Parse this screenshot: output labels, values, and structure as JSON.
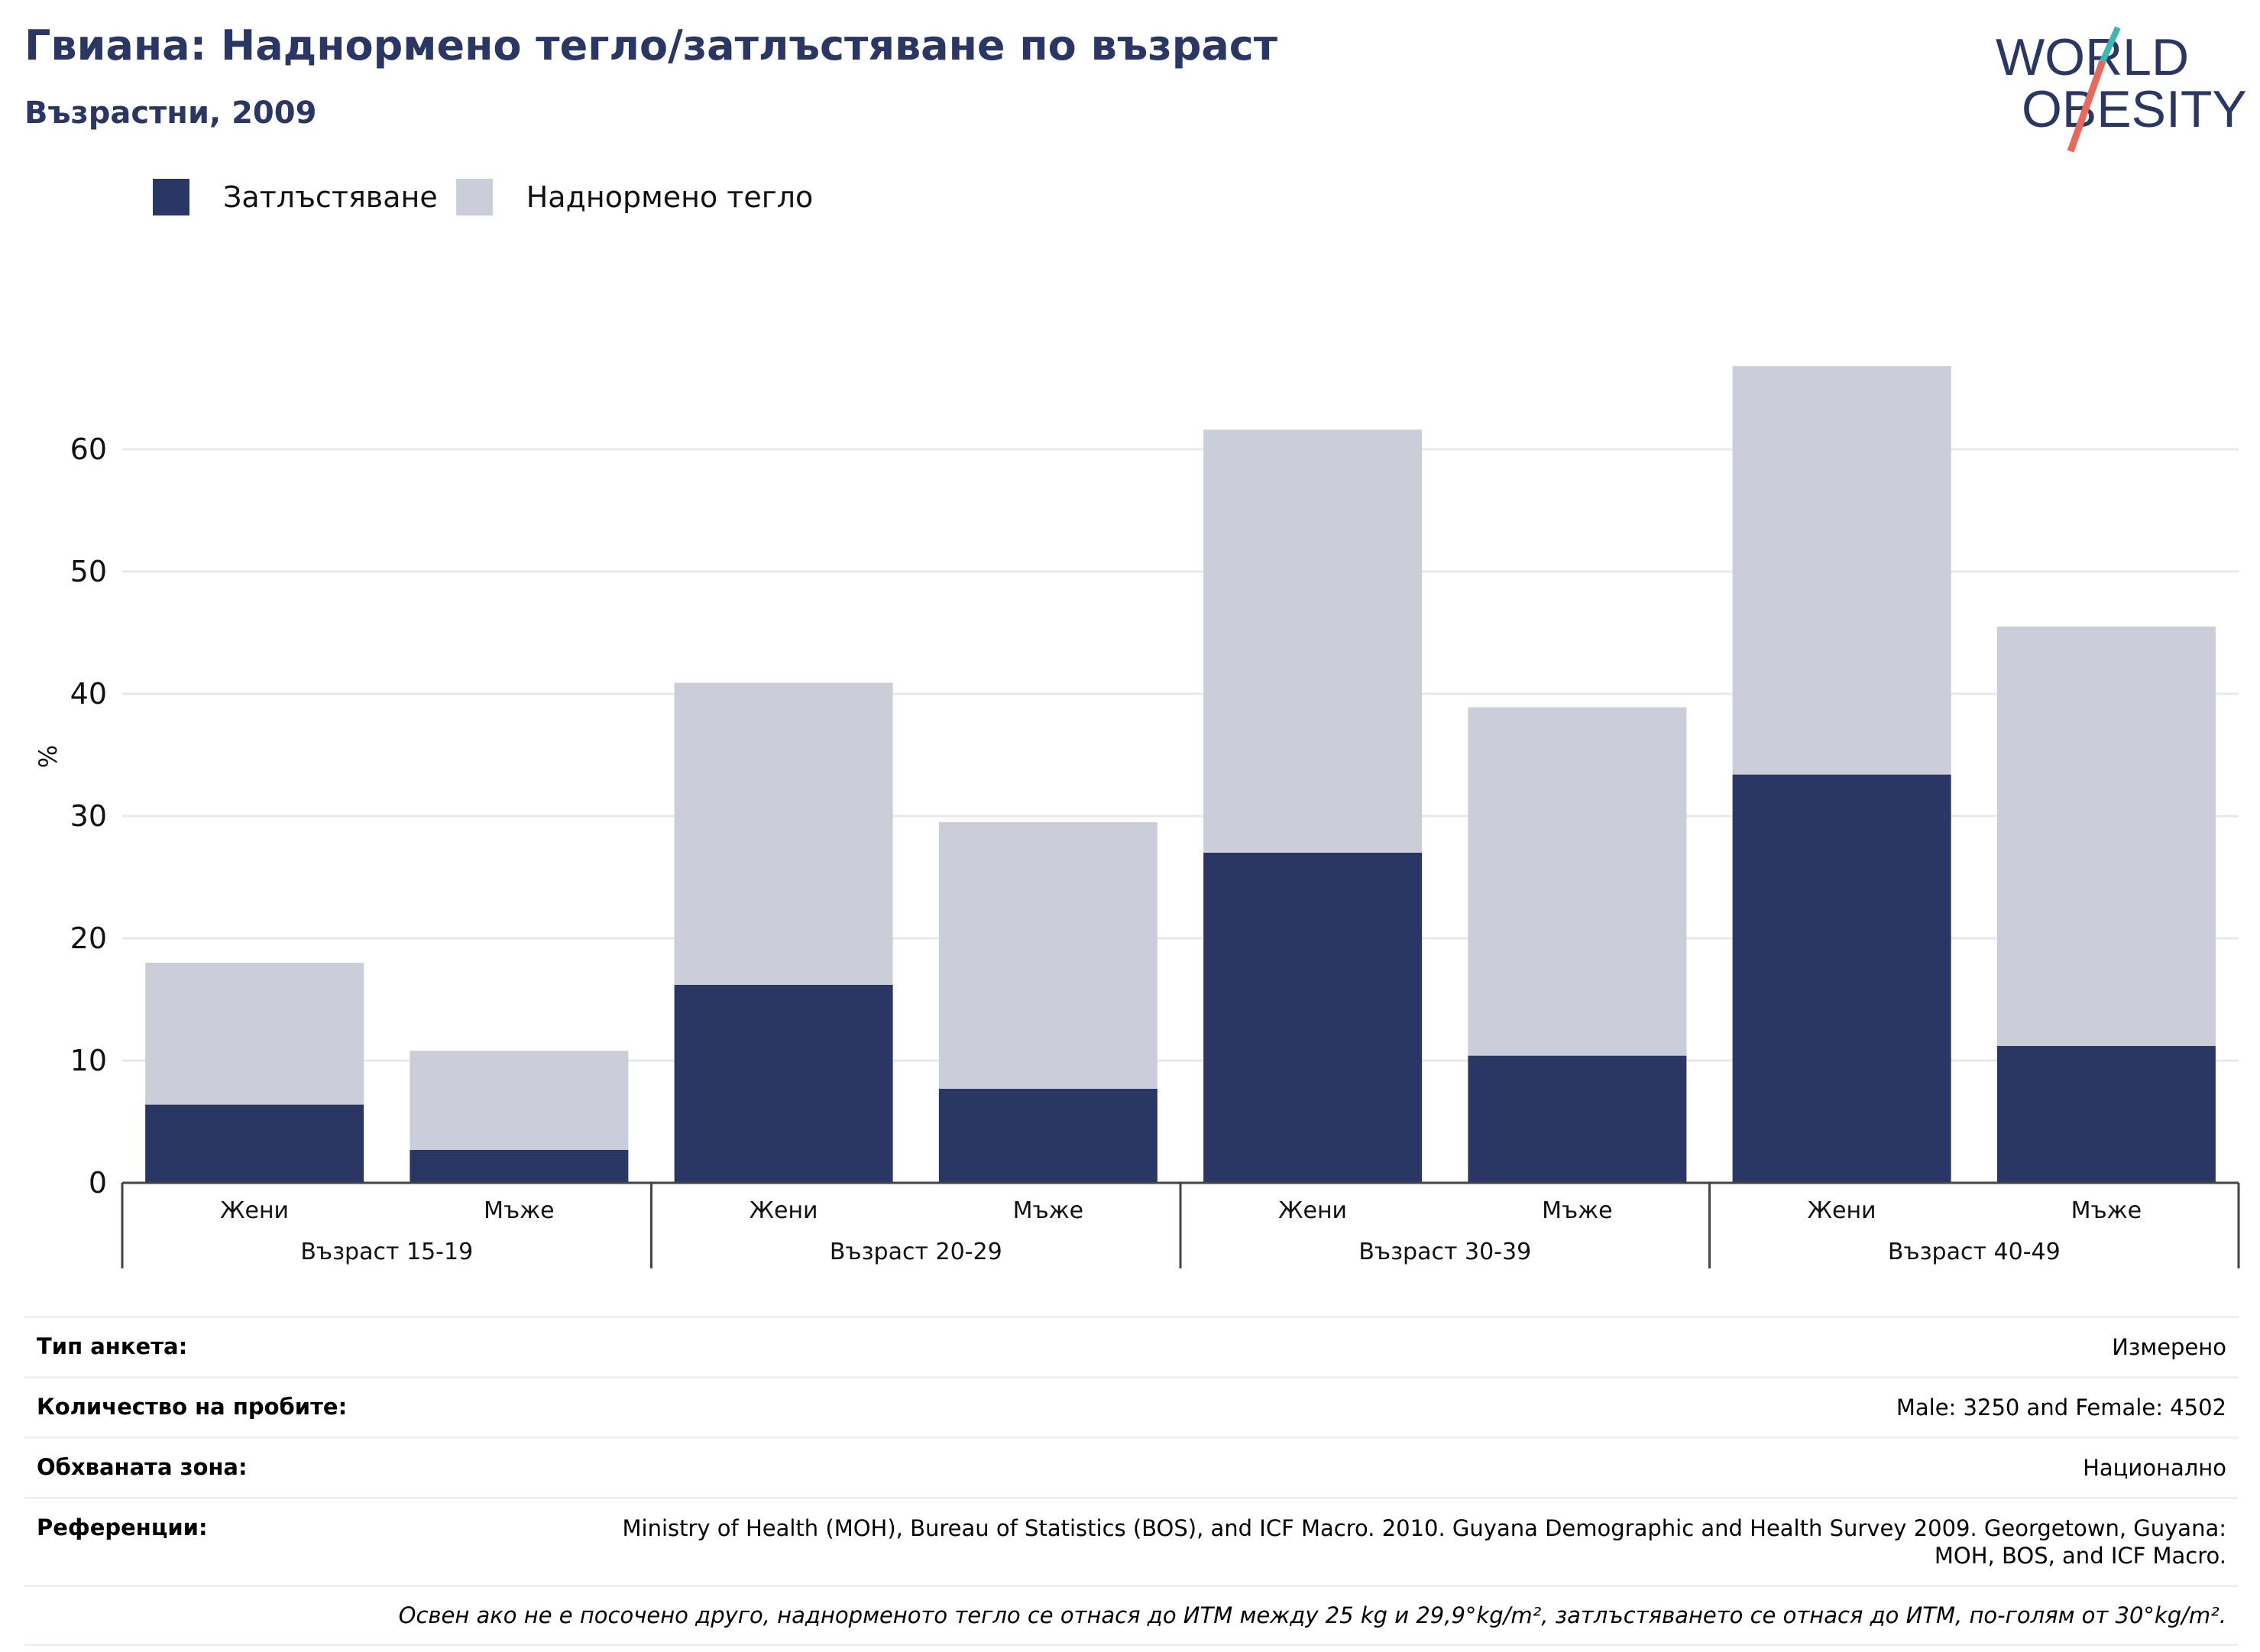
{
  "header": {
    "title": "Гвиана: Наднормено тегло/затлъстяване по възраст",
    "subtitle": "Възрастни, 2009"
  },
  "logo": {
    "line1": "WORLD",
    "line2": "OBESITY"
  },
  "colors": {
    "obesity": "#2a3663",
    "overweight": "#cbcdd9",
    "title": "#2a3663",
    "logo_teal": "#3bb8b0",
    "logo_coral": "#e8685a"
  },
  "chart_data": {
    "type": "bar",
    "stacked": true,
    "ylabel": "%",
    "ylim": [
      0,
      72
    ],
    "yticks": [
      0,
      10,
      20,
      30,
      40,
      50,
      60
    ],
    "grid": true,
    "legend_position": "top-left",
    "groups": [
      "Възраст 15-19",
      "Възраст 20-29",
      "Възраст 30-39",
      "Възраст 40-49"
    ],
    "categories": [
      "Жени",
      "Мъже",
      "Жени",
      "Мъже",
      "Жени",
      "Мъже",
      "Жени",
      "Мъже"
    ],
    "series": [
      {
        "name": "Затлъстяване",
        "color": "#2a3663",
        "values": [
          6.4,
          2.7,
          16.2,
          7.7,
          27.0,
          10.4,
          33.4,
          11.2
        ]
      },
      {
        "name": "Наднормено тегло",
        "color": "#cbcdd9",
        "values": [
          11.6,
          8.1,
          24.7,
          21.8,
          34.6,
          28.5,
          33.4,
          34.3
        ]
      }
    ]
  },
  "info": {
    "rows": [
      {
        "label": "Тип анкета:",
        "value": "Измерено"
      },
      {
        "label": "Количество на пробите:",
        "value": "Male: 3250 and Female: 4502"
      },
      {
        "label": "Обхваната зона:",
        "value": "Национално"
      },
      {
        "label": "Референции:",
        "value": "Ministry of Health (MOH), Bureau of Statistics (BOS), and ICF Macro. 2010. Guyana Demographic and Health Survey 2009. Georgetown, Guyana: MOH, BOS, and ICF Macro."
      }
    ],
    "note": "Освен ако не е посочено друго, наднорменото тегло се отнася до ИТМ между 25 kg и 29,9°kg/m², затлъстяването се отнася до ИТМ, по-голям от 30°kg/m²."
  }
}
